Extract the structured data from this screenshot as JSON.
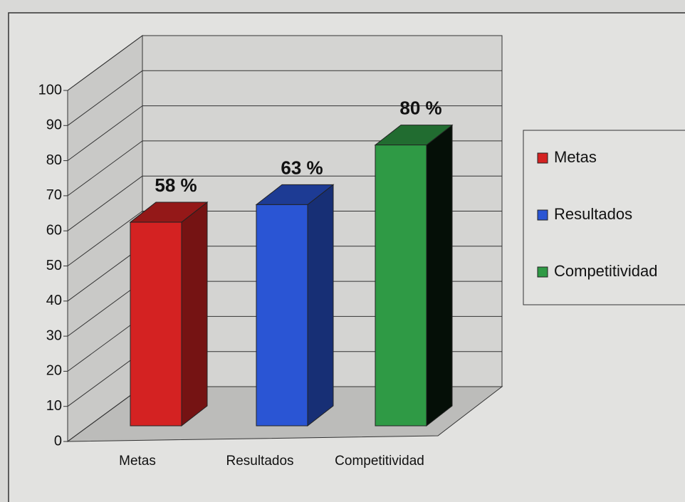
{
  "chart_data": {
    "type": "bar3d",
    "categories": [
      "Metas",
      "Resultados",
      "Competitividad"
    ],
    "values": [
      58,
      63,
      80
    ],
    "value_labels": [
      "58 %",
      "63 %",
      "80 %"
    ],
    "colors": [
      "#d42222",
      "#2a55d4",
      "#2f9a45"
    ],
    "ylim": [
      0,
      100
    ],
    "yticks": [
      0,
      10,
      20,
      30,
      40,
      50,
      60,
      70,
      80,
      90,
      100
    ],
    "grid": true,
    "legend": "right"
  }
}
